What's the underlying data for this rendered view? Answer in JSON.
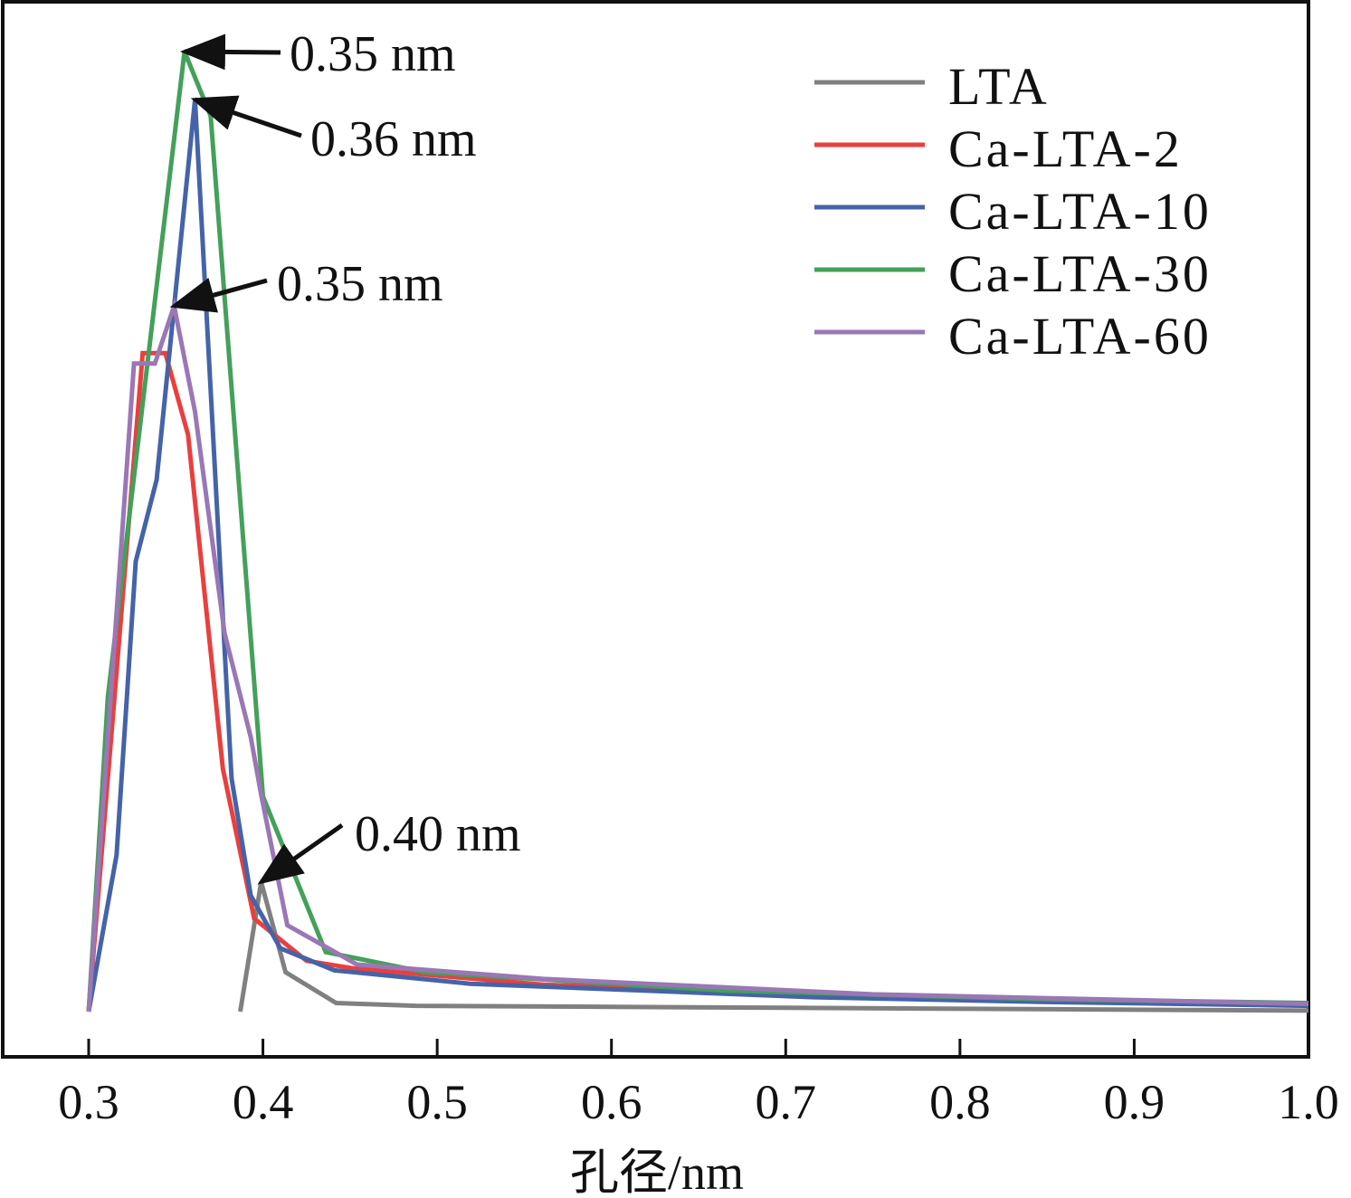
{
  "chart_data": {
    "type": "line",
    "title": "",
    "xlabel": "孔径/nm",
    "ylabel": "",
    "xlim": [
      0.3,
      1.0
    ],
    "ylim": [
      0,
      1.0
    ],
    "y_units": "normalized (no y ticks shown)",
    "grid": false,
    "legend_position": "top-right",
    "x_ticks": [
      0.3,
      0.4,
      0.5,
      0.6,
      0.7,
      0.8,
      0.9,
      1.0
    ],
    "x_tick_labels": [
      "0.3",
      "0.4",
      "0.5",
      "0.6",
      "0.7",
      "0.8",
      "0.9",
      "1.0"
    ],
    "series": [
      {
        "name": "LTA",
        "color": "#808080",
        "x": [
          0.387,
          0.399,
          0.413,
          0.442,
          0.488,
          0.7,
          1.0
        ],
        "y": [
          0.0,
          0.135,
          0.041,
          0.009,
          0.006,
          0.004,
          0.001
        ]
      },
      {
        "name": "Ca-LTA-2",
        "color": "#e8403f",
        "x": [
          0.3,
          0.331,
          0.344,
          0.357,
          0.377,
          0.395,
          0.425,
          0.452,
          0.561,
          0.7,
          0.85,
          1.0
        ],
        "y": [
          0.0,
          0.686,
          0.686,
          0.601,
          0.253,
          0.097,
          0.053,
          0.045,
          0.028,
          0.02,
          0.012,
          0.008
        ]
      },
      {
        "name": "Ca-LTA-10",
        "color": "#4563a8",
        "x": [
          0.3,
          0.316,
          0.327,
          0.339,
          0.361,
          0.382,
          0.393,
          0.41,
          0.441,
          0.519,
          0.716,
          0.85,
          1.0
        ],
        "y": [
          0.0,
          0.163,
          0.469,
          0.554,
          0.95,
          0.243,
          0.121,
          0.066,
          0.043,
          0.029,
          0.015,
          0.01,
          0.006
        ]
      },
      {
        "name": "Ca-LTA-30",
        "color": "#44a05a",
        "x": [
          0.3,
          0.311,
          0.355,
          0.37,
          0.4,
          0.436,
          0.493,
          0.665,
          0.846,
          1.0
        ],
        "y": [
          0.0,
          0.328,
          1.0,
          0.933,
          0.224,
          0.062,
          0.041,
          0.022,
          0.013,
          0.009
        ]
      },
      {
        "name": "Ca-LTA-60",
        "color": "#9a77b5",
        "x": [
          0.3,
          0.326,
          0.338,
          0.349,
          0.361,
          0.378,
          0.393,
          0.399,
          0.414,
          0.454,
          0.561,
          0.75,
          1.0
        ],
        "y": [
          0.0,
          0.675,
          0.675,
          0.735,
          0.625,
          0.394,
          0.286,
          0.226,
          0.09,
          0.049,
          0.034,
          0.018,
          0.008
        ]
      }
    ],
    "annotations": [
      {
        "text": "0.35 nm",
        "target_series": "Ca-LTA-30",
        "x": 0.355,
        "y": 1.0
      },
      {
        "text": "0.36 nm",
        "target_series": "Ca-LTA-10",
        "x": 0.361,
        "y": 0.95
      },
      {
        "text": "0.35 nm",
        "target_series": "Ca-LTA-60",
        "x": 0.349,
        "y": 0.735
      },
      {
        "text": "0.40 nm",
        "target_series": "LTA",
        "x": 0.399,
        "y": 0.135
      }
    ]
  }
}
